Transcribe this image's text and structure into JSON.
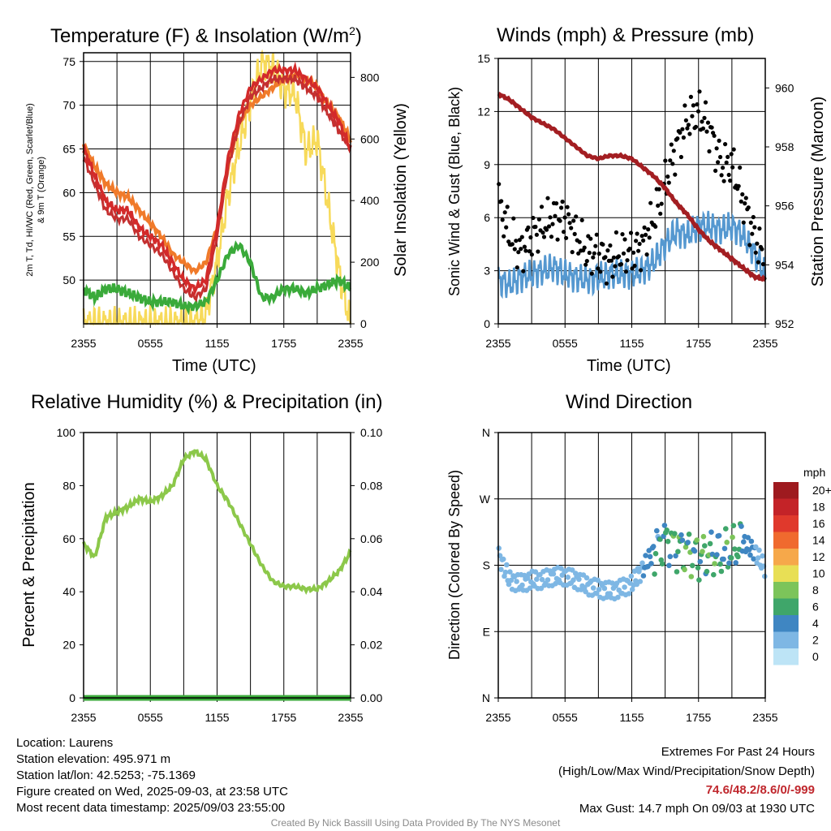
{
  "colors": {
    "temp": "#d32a2a",
    "dewpoint": "#3aaa3a",
    "heat_index": "#c43030",
    "temp9m": "#f07a2a",
    "solar": "#f7da5a",
    "wind": "#5598d0",
    "gust": "#000000",
    "pressure": "#a31e22",
    "rh": "#8cc84a",
    "precip": "#3aaa3a",
    "credit": "#8a8a8a",
    "extremes": "#c0282e"
  },
  "chart_data": [
    {
      "type": "line",
      "title": "Temperature (F) & Insolation (W/m²)",
      "title_main": "Temperature (F) & Insolation (W/m",
      "title_sup": "2",
      "title_close": ")",
      "xlabel": "Time (UTC)",
      "ylabel_line1": "2m T, Td, HI/WC (Red, Green, Scarlet/Blue)",
      "ylabel_line2": "& 9m T (Orange)",
      "ylabel_right": "Solar Insolation (Yellow)",
      "xticks": [
        "2355",
        "0555",
        "1155",
        "1755",
        "2355"
      ],
      "ylim": [
        45,
        76
      ],
      "yticks": [
        50,
        55,
        60,
        65,
        70,
        75
      ],
      "y2lim": [
        0,
        880
      ],
      "y2ticks": [
        0,
        200,
        400,
        600,
        800
      ],
      "x_hours": [
        0,
        1,
        2,
        3,
        4,
        5,
        6,
        7,
        8,
        9,
        10,
        11,
        12,
        13,
        14,
        15,
        16,
        17,
        18,
        19,
        20,
        21,
        22,
        23,
        24
      ],
      "series": [
        {
          "name": "2m T",
          "axis": "left",
          "values": [
            65,
            62,
            59,
            58,
            58,
            56,
            55,
            54,
            52,
            50,
            49,
            50,
            56,
            64,
            69,
            72,
            73,
            74,
            74,
            74,
            73,
            72,
            70,
            68,
            65
          ]
        },
        {
          "name": "HI/WC",
          "axis": "left",
          "values": [
            64,
            61,
            58,
            57,
            57,
            55,
            54,
            53,
            51,
            49,
            48,
            49,
            55,
            63,
            68,
            71,
            72,
            73,
            73,
            73,
            72,
            71,
            69,
            67,
            65
          ]
        },
        {
          "name": "9m T",
          "axis": "left",
          "values": [
            65.5,
            63,
            61,
            60,
            59.5,
            58,
            56.5,
            55,
            53,
            52,
            51,
            52,
            56,
            63,
            68,
            70,
            71,
            72,
            73,
            73.5,
            73,
            72,
            70,
            68.5,
            66
          ]
        },
        {
          "name": "Td",
          "axis": "left",
          "values": [
            49,
            48,
            49,
            49,
            48.5,
            48,
            47.5,
            47.5,
            47.5,
            47,
            47,
            47.5,
            50,
            53,
            54,
            52,
            48,
            48,
            49,
            49,
            48.5,
            49,
            49.5,
            50,
            49
          ]
        },
        {
          "name": "Solar",
          "axis": "right",
          "values": [
            0,
            0,
            0,
            0,
            0,
            0,
            0,
            0,
            0,
            0,
            0,
            30,
            200,
            420,
            580,
            720,
            850,
            830,
            760,
            750,
            560,
            600,
            380,
            160,
            0
          ]
        }
      ]
    },
    {
      "type": "line",
      "title": "Winds (mph) & Pressure (mb)",
      "xlabel": "Time (UTC)",
      "ylabel": "Sonic Wind & Gust (Blue, Black)",
      "ylabel_right": "Station Pressure (Maroon)",
      "xticks": [
        "2355",
        "0555",
        "1155",
        "1755",
        "2355"
      ],
      "ylim": [
        0,
        15
      ],
      "yticks": [
        0,
        3,
        6,
        9,
        12,
        15
      ],
      "y2lim": [
        952,
        961
      ],
      "y2ticks": [
        952,
        954,
        956,
        958,
        960
      ],
      "x_hours": [
        0,
        1,
        2,
        3,
        4,
        5,
        6,
        7,
        8,
        9,
        10,
        11,
        12,
        13,
        14,
        15,
        16,
        17,
        18,
        19,
        20,
        21,
        22,
        23,
        24
      ],
      "series": [
        {
          "name": "Wind",
          "axis": "left",
          "values": [
            2.5,
            2.2,
            2.6,
            2.8,
            3.0,
            3.2,
            2.8,
            2.6,
            2.5,
            2.6,
            2.8,
            2.8,
            2.8,
            3.0,
            3.5,
            4.5,
            5.2,
            5.0,
            5.5,
            5.5,
            5.3,
            5.5,
            5.0,
            4.0,
            2.8
          ]
        },
        {
          "name": "Gust",
          "axis": "left",
          "values": [
            7,
            5,
            4,
            5,
            5.5,
            6,
            6,
            5,
            4,
            4,
            3.5,
            4,
            4,
            4.5,
            6,
            8,
            10,
            11.5,
            12,
            11,
            9,
            9,
            7,
            5,
            3.5
          ]
        },
        {
          "name": "Pressure",
          "axis": "right",
          "values": [
            959.8,
            959.6,
            959.3,
            959.0,
            958.8,
            958.6,
            958.3,
            958.0,
            957.7,
            957.6,
            957.7,
            957.7,
            957.6,
            957.3,
            957.0,
            956.6,
            956.1,
            955.7,
            955.2,
            954.8,
            954.5,
            954.2,
            953.9,
            953.6,
            953.5
          ]
        }
      ]
    },
    {
      "type": "line",
      "title": "Relative Humidity (%) & Precipitation (in)",
      "ylabel": "Percent & Precipitation",
      "xticks": [
        "2355",
        "0555",
        "1155",
        "1755",
        "2355"
      ],
      "ylim": [
        0,
        100
      ],
      "yticks": [
        0,
        20,
        40,
        60,
        80,
        100
      ],
      "y2lim": [
        0,
        0.1
      ],
      "y2ticks": [
        "0.00",
        "0.02",
        "0.04",
        "0.06",
        "0.08",
        "0.10"
      ],
      "x_hours": [
        0,
        1,
        2,
        3,
        4,
        5,
        6,
        7,
        8,
        9,
        10,
        11,
        12,
        13,
        14,
        15,
        16,
        17,
        18,
        19,
        20,
        21,
        22,
        23,
        24
      ],
      "series": [
        {
          "name": "RH",
          "axis": "left",
          "values": [
            58,
            53,
            68,
            70,
            72,
            75,
            74,
            76,
            80,
            90,
            93,
            90,
            80,
            74,
            66,
            58,
            50,
            44,
            42,
            42,
            41,
            41,
            44,
            48,
            55
          ]
        },
        {
          "name": "Precipitation",
          "axis": "right",
          "values": [
            0,
            0,
            0,
            0,
            0,
            0,
            0,
            0,
            0,
            0,
            0,
            0,
            0,
            0,
            0,
            0,
            0,
            0,
            0,
            0,
            0,
            0,
            0,
            0,
            0
          ]
        }
      ]
    },
    {
      "type": "scatter",
      "title": "Wind Direction",
      "ylabel": "Direction (Colored By Speed)",
      "xticks": [
        "2355",
        "0555",
        "1155",
        "1755",
        "2355"
      ],
      "ylim": [
        0,
        360
      ],
      "yticks": [
        0,
        90,
        180,
        270,
        360
      ],
      "ytick_labels": [
        "N",
        "E",
        "S",
        "W",
        "N"
      ],
      "x_hours": [
        0,
        1,
        2,
        3,
        4,
        5,
        6,
        7,
        8,
        9,
        10,
        11,
        12,
        13,
        14,
        15,
        16,
        17,
        18,
        19,
        20,
        21,
        22,
        23,
        24
      ],
      "direction_deg": [
        195,
        160,
        155,
        160,
        160,
        165,
        165,
        160,
        152,
        148,
        145,
        148,
        155,
        175,
        200,
        215,
        205,
        200,
        190,
        195,
        195,
        200,
        210,
        200,
        175
      ],
      "speed_mph": [
        2,
        2,
        2,
        2,
        2,
        2,
        2,
        2,
        2,
        2,
        2,
        2,
        2,
        3,
        4,
        5,
        6,
        6,
        6,
        6,
        5,
        6,
        5,
        3,
        2
      ],
      "legend": {
        "title": "mph",
        "labels": [
          "20+",
          "18",
          "16",
          "14",
          "12",
          "10",
          "8",
          "6",
          "4",
          "2",
          "0"
        ],
        "colors": [
          "#9e1a1f",
          "#c42328",
          "#e0392c",
          "#f06a2e",
          "#f6a84a",
          "#e8df55",
          "#7cc45a",
          "#3fa66a",
          "#3f86c2",
          "#7eb7e4",
          "#bde4f6"
        ]
      }
    }
  ],
  "footer": {
    "location": "Location: Laurens",
    "elevation": "Station elevation: 495.971 m",
    "latlon": "Station lat/lon: 42.5253; -75.1369",
    "created": "Figure created on Wed, 2025-09-03, at 23:58 UTC",
    "recent": "Most recent data timestamp: 2025/09/03 23:55:00",
    "extremes_title": "Extremes For Past 24 Hours",
    "extremes_sub": "(High/Low/Max Wind/Precipitation/Snow Depth)",
    "extremes_values": "74.6/48.2/8.6/0/-999",
    "max_gust": "Max Gust: 14.7 mph On 09/03 at 1930 UTC",
    "credit": "Created By Nick Bassill Using Data Provided By The NYS Mesonet"
  }
}
